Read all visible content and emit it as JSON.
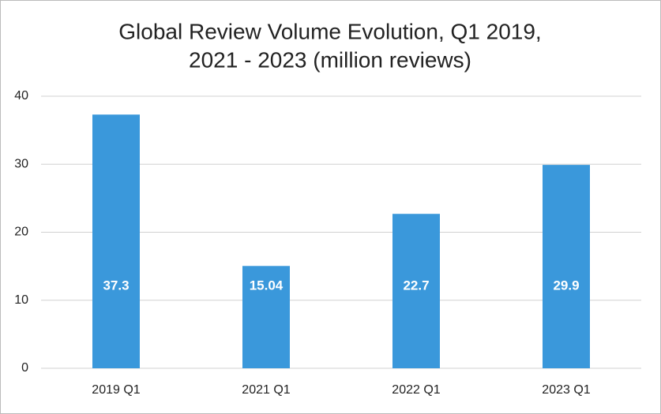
{
  "chart_data": {
    "type": "bar",
    "title": [
      "Global Review Volume Evolution, Q1 2019,",
      "2021 - 2023 (million reviews)"
    ],
    "categories": [
      "2019 Q1",
      "2021 Q1",
      "2022 Q1",
      "2023 Q1"
    ],
    "values": [
      37.3,
      15.04,
      22.7,
      29.9
    ],
    "color": "#3a98db",
    "ylim": [
      0,
      40
    ],
    "yticks": [
      0,
      10,
      20,
      30,
      40
    ],
    "grid": true
  }
}
